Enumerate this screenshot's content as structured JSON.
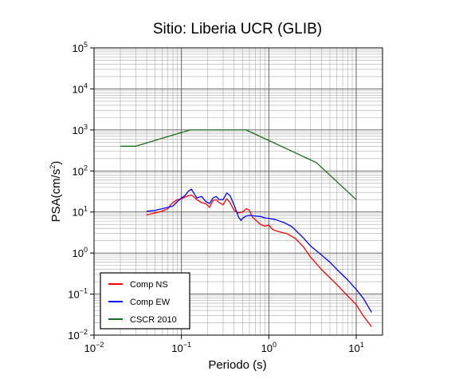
{
  "chart_data": {
    "type": "line",
    "title": "Sitio: Liberia UCR (GLIB)",
    "xlabel": "Periodo (s)",
    "ylabel_base": "PSA(cm/s",
    "ylabel_sup": "2",
    "ylabel_close": ")",
    "xscale": "log",
    "yscale": "log",
    "xlim": [
      0.01,
      20
    ],
    "ylim": [
      0.01,
      100000
    ],
    "grid": true,
    "legend_position": "bottom-left",
    "x_ticks": [
      {
        "base": "10",
        "exp": "−2"
      },
      {
        "base": "10",
        "exp": "−1"
      },
      {
        "base": "10",
        "exp": "0"
      },
      {
        "base": "10",
        "exp": "1"
      }
    ],
    "y_ticks": [
      {
        "base": "10",
        "exp": "−2"
      },
      {
        "base": "10",
        "exp": "−1"
      },
      {
        "base": "10",
        "exp": "0"
      },
      {
        "base": "10",
        "exp": "1"
      },
      {
        "base": "10",
        "exp": "2"
      },
      {
        "base": "10",
        "exp": "3"
      },
      {
        "base": "10",
        "exp": "4"
      },
      {
        "base": "10",
        "exp": "5"
      }
    ],
    "series": [
      {
        "name": "Comp NS",
        "color": "#ff0000",
        "points": [
          [
            0.04,
            8.5
          ],
          [
            0.05,
            9.5
          ],
          [
            0.06,
            10.5
          ],
          [
            0.07,
            12
          ],
          [
            0.075,
            15
          ],
          [
            0.08,
            17
          ],
          [
            0.09,
            20
          ],
          [
            0.1,
            21
          ],
          [
            0.11,
            23
          ],
          [
            0.12,
            25
          ],
          [
            0.13,
            26
          ],
          [
            0.14,
            23
          ],
          [
            0.15,
            20
          ],
          [
            0.17,
            17
          ],
          [
            0.19,
            16
          ],
          [
            0.21,
            13
          ],
          [
            0.23,
            19
          ],
          [
            0.25,
            20
          ],
          [
            0.27,
            17
          ],
          [
            0.3,
            15
          ],
          [
            0.33,
            21
          ],
          [
            0.36,
            17
          ],
          [
            0.4,
            11
          ],
          [
            0.45,
            9.5
          ],
          [
            0.5,
            10
          ],
          [
            0.55,
            12
          ],
          [
            0.6,
            11
          ],
          [
            0.65,
            7.5
          ],
          [
            0.7,
            6.5
          ],
          [
            0.8,
            5
          ],
          [
            0.9,
            4.5
          ],
          [
            1.0,
            4.8
          ],
          [
            1.1,
            3.8
          ],
          [
            1.2,
            3.5
          ],
          [
            1.4,
            3.2
          ],
          [
            1.6,
            3.0
          ],
          [
            1.8,
            2.6
          ],
          [
            2.0,
            2.3
          ],
          [
            2.5,
            1.4
          ],
          [
            3.0,
            0.8
          ],
          [
            4.0,
            0.4
          ],
          [
            5.0,
            0.25
          ],
          [
            6.0,
            0.17
          ],
          [
            8.0,
            0.09
          ],
          [
            10.0,
            0.055
          ],
          [
            12.0,
            0.03
          ],
          [
            15.0,
            0.016
          ]
        ]
      },
      {
        "name": "Comp EW",
        "color": "#0000ff",
        "points": [
          [
            0.04,
            10.5
          ],
          [
            0.05,
            11
          ],
          [
            0.06,
            12
          ],
          [
            0.07,
            13
          ],
          [
            0.08,
            14
          ],
          [
            0.09,
            18
          ],
          [
            0.1,
            22
          ],
          [
            0.11,
            25
          ],
          [
            0.12,
            32
          ],
          [
            0.13,
            36
          ],
          [
            0.14,
            28
          ],
          [
            0.15,
            22
          ],
          [
            0.17,
            24
          ],
          [
            0.19,
            18
          ],
          [
            0.21,
            16
          ],
          [
            0.23,
            22
          ],
          [
            0.25,
            24
          ],
          [
            0.27,
            20
          ],
          [
            0.3,
            20
          ],
          [
            0.33,
            29
          ],
          [
            0.36,
            25
          ],
          [
            0.4,
            15
          ],
          [
            0.45,
            7.5
          ],
          [
            0.48,
            6.2
          ],
          [
            0.5,
            7
          ],
          [
            0.55,
            8
          ],
          [
            0.6,
            8.2
          ],
          [
            0.7,
            8
          ],
          [
            0.8,
            7.8
          ],
          [
            0.9,
            7.2
          ],
          [
            1.0,
            7.0
          ],
          [
            1.2,
            6.5
          ],
          [
            1.5,
            5.5
          ],
          [
            1.8,
            4.5
          ],
          [
            2.0,
            3.7
          ],
          [
            2.5,
            2.3
          ],
          [
            3.0,
            1.5
          ],
          [
            4.0,
            0.9
          ],
          [
            5.0,
            0.6
          ],
          [
            6.0,
            0.4
          ],
          [
            8.0,
            0.22
          ],
          [
            10.0,
            0.13
          ],
          [
            12.0,
            0.08
          ],
          [
            15.0,
            0.036
          ]
        ]
      },
      {
        "name": "CSCR 2010",
        "color": "#1a6b1a",
        "points": [
          [
            0.02,
            400
          ],
          [
            0.03,
            400
          ],
          [
            0.125,
            1000
          ],
          [
            0.55,
            1000
          ],
          [
            3.5,
            160
          ],
          [
            10.0,
            20
          ]
        ]
      }
    ]
  }
}
